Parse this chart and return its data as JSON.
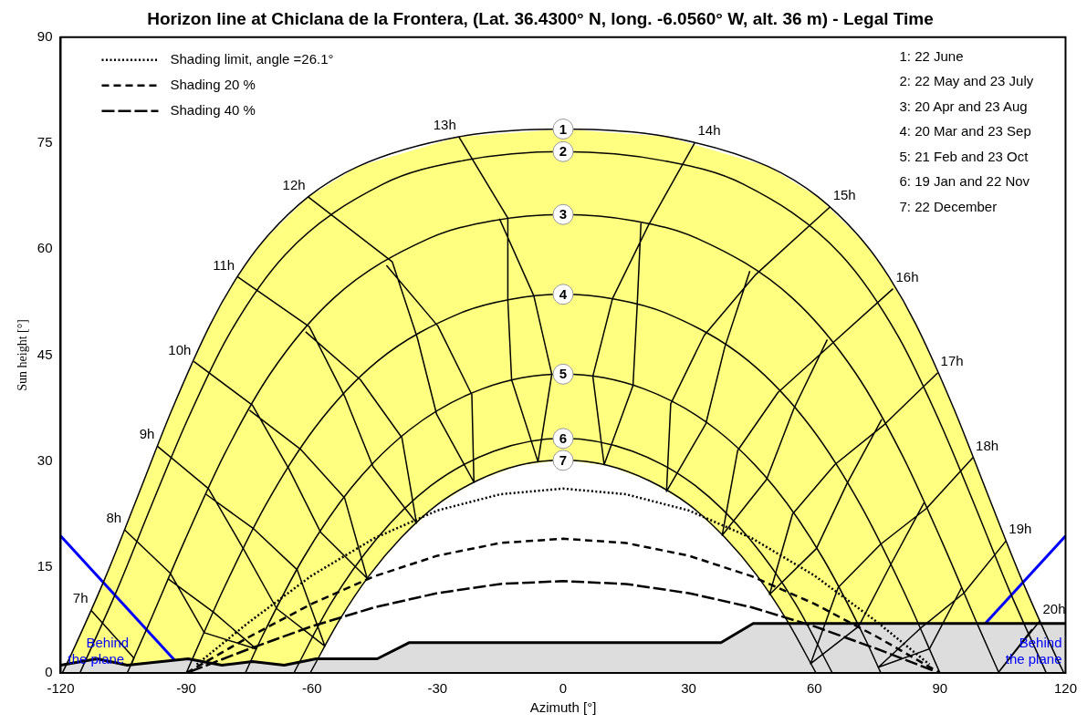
{
  "chart_data": {
    "type": "line",
    "title": "Horizon line at Chiclana de la Frontera, (Lat. 36.4300° N, long. -6.0560° W, alt. 36 m) - Legal Time",
    "xlabel": "Azimuth [°]",
    "ylabel": "Sun height [°]",
    "xlim": [
      -120,
      120
    ],
    "xticks": [
      -120,
      -90,
      -60,
      -30,
      0,
      30,
      60,
      90,
      120
    ],
    "ylim": [
      0,
      90
    ],
    "yticks": [
      0,
      15,
      30,
      45,
      60,
      75,
      90
    ],
    "legend": "top left",
    "series": [
      {
        "name": "1",
        "color": "#000000",
        "x": [
          -119.6,
          -117.5,
          -109.2,
          -101.4,
          -93.4,
          -84.3,
          -77.8,
          -71.7,
          -60.9,
          -49.0,
          -24.9,
          0,
          24.9,
          49.0,
          60.9,
          71.7,
          77.8,
          84.3,
          93.4,
          101.4,
          109.2,
          117.5,
          119.6
        ],
        "values": [
          0,
          2.6,
          13.7,
          25.3,
          37.3,
          49.3,
          56.1,
          61.1,
          67.4,
          71.7,
          75.9,
          77.0,
          75.9,
          71.7,
          67.4,
          61.1,
          56.1,
          49.3,
          37.3,
          25.3,
          13.7,
          2.6,
          0
        ]
      },
      {
        "name": "2",
        "color": "#000000",
        "x": [
          -115.4,
          -106.5,
          -98.4,
          -89.9,
          -80.1,
          -66.4,
          -43.0,
          -24.1,
          0,
          24.1,
          43.0,
          66.4,
          80.1,
          89.9,
          98.4,
          106.5,
          115.4
        ],
        "values": [
          0,
          11.8,
          23.6,
          35.6,
          47.6,
          59.2,
          69.2,
          72.5,
          73.8,
          72.5,
          69.2,
          59.2,
          47.6,
          35.6,
          23.6,
          11.8,
          0
        ]
      },
      {
        "name": "3",
        "color": "#000000",
        "x": [
          -104.1,
          -99.1,
          -90.4,
          -81.1,
          -69.9,
          -54.7,
          -32.1,
          -17.0,
          0,
          17.0,
          32.1,
          54.7,
          69.9,
          81.1,
          90.4,
          99.1,
          104.1
        ],
        "values": [
          0,
          6.7,
          18.7,
          30.7,
          42.4,
          53.1,
          61.5,
          64.0,
          64.9,
          64.0,
          61.5,
          53.1,
          42.4,
          30.7,
          18.7,
          6.7,
          0
        ]
      },
      {
        "name": "4",
        "color": "#000000",
        "x": [
          -90,
          -81.0,
          -71.1,
          -59.3,
          -44.2,
          -24.3,
          -12.5,
          0,
          12.5,
          24.3,
          44.2,
          59.3,
          71.1,
          81.0,
          90
        ],
        "values": [
          0,
          12.0,
          23.7,
          34.7,
          44.2,
          51.0,
          52.9,
          53.6,
          52.9,
          51.0,
          44.2,
          34.7,
          23.7,
          12.0,
          0
        ]
      },
      {
        "name": "5",
        "color": "#000000",
        "x": [
          -75.9,
          -72.0,
          -62.1,
          -50.6,
          -36.5,
          -19.4,
          0,
          19.4,
          36.5,
          50.6,
          62.1,
          72.0,
          75.9
        ],
        "values": [
          0,
          5.0,
          16.2,
          26.2,
          34.5,
          40.2,
          42.3,
          40.2,
          34.5,
          26.2,
          16.2,
          5.0,
          0
        ]
      },
      {
        "name": "6",
        "color": "#000000",
        "x": [
          -64.3,
          -55.5,
          -44.5,
          -31.6,
          -16.5,
          0,
          16.5,
          31.6,
          44.5,
          55.5,
          64.3
        ],
        "values": [
          0,
          9.8,
          19.0,
          26.5,
          31.4,
          33.2,
          31.4,
          26.5,
          19.0,
          9.8,
          0
        ]
      },
      {
        "name": "7",
        "color": "#000000",
        "x": [
          -60.4,
          -53.3,
          -46.3,
          -38.6,
          -30.1,
          -20.6,
          -10.5,
          0,
          10.5,
          20.6,
          30.1,
          38.6,
          46.3,
          53.3,
          60.4
        ],
        "values": [
          0,
          7.6,
          13.8,
          19.2,
          23.8,
          27.2,
          29.4,
          30.1,
          29.4,
          27.2,
          23.8,
          19.2,
          13.8,
          7.6,
          0
        ]
      },
      {
        "name": "7h",
        "color": "#000000",
        "x": [
          -112.8,
          -102.5,
          -103.0
        ],
        "values": [
          8.9,
          2.1,
          1.4
        ]
      },
      {
        "name": "8h",
        "color": "#000000",
        "x": [
          -104.8,
          -93.8,
          -85.7,
          -73.3,
          -83.5,
          -94.3
        ],
        "values": [
          20.3,
          14.1,
          5.7,
          3.4,
          8.6,
          13.3
        ]
      },
      {
        "name": "9h",
        "color": "#000000",
        "x": [
          -96.9,
          -84.7,
          -76.3,
          -68.4,
          -56.9,
          -63.5,
          -73.9,
          -85.3
        ],
        "values": [
          32.1,
          26.1,
          17.5,
          9.1,
          3.8,
          14.6,
          20.4,
          25.3
        ]
      },
      {
        "name": "10h",
        "color": "#000000",
        "x": [
          -88.2,
          -74.2,
          -65.5,
          -57.9,
          -46.8,
          -52.2,
          -62.6,
          -74.9
        ],
        "values": [
          44.1,
          37.9,
          28.9,
          19.9,
          13.4,
          24.8,
          31.6,
          37.2
        ]
      },
      {
        "name": "11h",
        "color": "#000000",
        "x": [
          -77.8,
          -60.6,
          -52.2,
          -45.4,
          -35.0,
          -38.5,
          -48.4,
          -61.5
        ],
        "values": [
          56.1,
          49.0,
          39.2,
          29.2,
          21.2,
          33.3,
          41.5,
          48.3
        ]
      },
      {
        "name": "12h",
        "color": "#000000",
        "x": [
          -60.9,
          -40.8,
          -34.8,
          -30.2,
          -21.3,
          -21.8,
          -29.9,
          -42.2
        ],
        "values": [
          67.4,
          58.2,
          47.4,
          36.6,
          27.0,
          39.4,
          49.1,
          57.7
        ]
      },
      {
        "name": "13h",
        "color": "#000000",
        "x": [
          -24.9,
          -13.2,
          -13.2,
          -12.3,
          -6.0,
          -2.7,
          -7.0,
          -15.2
        ],
        "values": [
          75.9,
          64.4,
          52.8,
          41.5,
          29.9,
          42.3,
          53.4,
          64.3
        ]
      },
      {
        "name": "14h",
        "color": "#000000",
        "x": [
          31.5,
          20.4,
          11.8,
          7.1,
          9.8,
          16.7,
          17.7,
          18.6
        ],
        "values": [
          75.1,
          63.4,
          53.0,
          42.0,
          29.5,
          40.7,
          52.1,
          63.7
        ]
      },
      {
        "name": "15h",
        "color": "#000000",
        "x": [
          63.8,
          46.0,
          33.7,
          25.7,
          24.7,
          34.1,
          38.6,
          44.6
        ],
        "values": [
          66.0,
          56.4,
          47.8,
          38.1,
          25.7,
          35.3,
          46.1,
          56.9
        ]
      },
      {
        "name": "16h",
        "color": "#000000",
        "x": [
          78.8,
          64.0,
          51.3,
          41.7,
          38.0,
          48.6,
          55.1,
          63.1
        ],
        "values": [
          54.4,
          46.5,
          39.7,
          31.5,
          19.5,
          27.4,
          37.4,
          47.2
        ]
      },
      {
        "name": "17h",
        "color": "#000000",
        "x": [
          89.5,
          76.8,
          64.9,
          54.8,
          49.3,
          60.5,
          67.8,
          76.1
        ],
        "values": [
          42.5,
          35.2,
          29.5,
          22.5,
          11.1,
          17.6,
          26.8,
          35.9
        ]
      },
      {
        "name": "18h",
        "color": "#000000",
        "x": [
          97.9,
          86.8,
          75.8,
          65.7,
          59.1,
          70.6,
          78.2,
          86.2
        ],
        "values": [
          30.5,
          23.3,
          18.2,
          12.1,
          1.3,
          6.6,
          15.3,
          24.1
        ]
      },
      {
        "name": "19h",
        "color": "#000000",
        "x": [
          105.8,
          95.7,
          85.3,
          75.3,
          87.5,
          95.2
        ],
        "values": [
          18.7,
          11.3,
          6.3,
          0.8,
          3.4,
          12.1
        ]
      },
      {
        "name": "20h",
        "color": "#000000",
        "x": [
          113.9,
          104.0,
          112.0
        ],
        "values": [
          7.4,
          0.1,
          6.2
        ]
      },
      {
        "name": "Shading limit, angle =26.1°",
        "line_style": "dotted",
        "color": "#000000",
        "x": [
          -87.5,
          -75,
          -60,
          -45,
          -30,
          -15,
          0,
          15,
          30,
          45,
          60,
          75,
          87.5
        ],
        "values": [
          1.2,
          7.2,
          13.8,
          19.1,
          23.0,
          25.3,
          26.1,
          25.3,
          23.0,
          19.1,
          13.8,
          7.2,
          1.2
        ]
      },
      {
        "name": "Shading 20 %",
        "line_style": "dashed",
        "color": "#000000",
        "x": [
          -90,
          -75,
          -60,
          -45,
          -30,
          -15,
          0,
          15,
          30,
          45,
          60,
          75,
          90
        ],
        "values": [
          0,
          5.1,
          9.8,
          13.7,
          16.6,
          18.4,
          19.0,
          18.4,
          16.6,
          13.7,
          9.8,
          5.1,
          0
        ]
      },
      {
        "name": "Shading 40 %",
        "line_style": "dashed",
        "color": "#000000",
        "x": [
          -89,
          -75,
          -60,
          -45,
          -30,
          -15,
          0,
          15,
          30,
          45,
          60,
          75,
          89
        ],
        "values": [
          0.2,
          3.4,
          6.6,
          9.3,
          11.3,
          12.6,
          13.0,
          12.6,
          11.3,
          9.3,
          6.6,
          3.4,
          0.2
        ]
      },
      {
        "type": "area",
        "color": "#dddddd",
        "x": [
          -120,
          -111.3,
          -104.1,
          -89.6,
          -81.5,
          -74.2,
          -66.6,
          -59,
          -44.4,
          -36.7,
          37.7,
          45.4,
          120
        ],
        "values": [
          1.1,
          2.0,
          1.1,
          2.0,
          1.1,
          1.6,
          1.1,
          2.0,
          2.0,
          4.3,
          4.3,
          7.0,
          7.0
        ]
      },
      {
        "color": "#0000ff",
        "x": [
          -120,
          -90
        ],
        "values": [
          19.4,
          0
        ]
      },
      {
        "color": "#0000ff",
        "x": [
          90,
          120
        ],
        "values": [
          0,
          19.4
        ]
      }
    ],
    "annotations": [
      "1: 22 June",
      "2: 22 May and 23 July",
      "3: 20 Apr and 23 Aug",
      "4: 20 Mar and 23 Sep",
      "5: 21 Feb and 23 Oct",
      "6: 19 Jan and 22 Nov",
      "7: 22 December",
      "Behind the plane",
      "Behind the plane"
    ]
  }
}
